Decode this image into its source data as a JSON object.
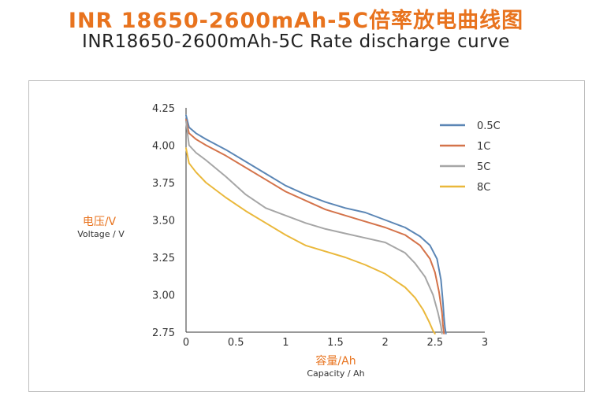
{
  "header": {
    "title_cn": "INR 18650-2600mAh-5C倍率放电曲线图",
    "title_en": "INR18650-2600mAh-5C Rate discharge curve"
  },
  "colors": {
    "accent": "#e8731e",
    "axis": "#333333",
    "frame": "#bdbdbd"
  },
  "chart_data": {
    "type": "line",
    "title": "INR18650-2600mAh-5C Rate discharge curve",
    "xlabel": "容量/Ah",
    "xlabel_en": "Capacity / Ah",
    "ylabel": "电压/V",
    "ylabel_en": "Voltage / V",
    "xlim": [
      0,
      3
    ],
    "ylim": [
      2.75,
      4.25
    ],
    "x_ticks": [
      0,
      0.5,
      1,
      1.5,
      2,
      2.5,
      3
    ],
    "x_tick_labels": [
      "0",
      "0.5",
      "1",
      "1.5",
      "2",
      "2.5",
      "3"
    ],
    "y_ticks": [
      2.75,
      3.0,
      3.25,
      3.5,
      3.75,
      4.0,
      4.25
    ],
    "y_tick_labels": [
      "2.75",
      "3.00",
      "3.25",
      "3.50",
      "3.75",
      "4.00",
      "4.25"
    ],
    "grid": false,
    "legend_position": "top-right",
    "series": [
      {
        "name": "0.5C",
        "color": "#5b86b5",
        "x": [
          0,
          0.03,
          0.1,
          0.2,
          0.4,
          0.6,
          0.8,
          1.0,
          1.2,
          1.4,
          1.6,
          1.8,
          2.0,
          2.2,
          2.35,
          2.45,
          2.52,
          2.56,
          2.58,
          2.59,
          2.6,
          2.61
        ],
        "y": [
          4.2,
          4.12,
          4.08,
          4.04,
          3.97,
          3.89,
          3.81,
          3.73,
          3.67,
          3.62,
          3.58,
          3.55,
          3.5,
          3.45,
          3.39,
          3.33,
          3.24,
          3.1,
          2.95,
          2.85,
          2.78,
          2.74
        ]
      },
      {
        "name": "1C",
        "color": "#d4734a",
        "x": [
          0,
          0.03,
          0.1,
          0.2,
          0.4,
          0.6,
          0.8,
          1.0,
          1.2,
          1.4,
          1.6,
          1.8,
          2.0,
          2.2,
          2.35,
          2.45,
          2.5,
          2.54,
          2.57,
          2.58,
          2.59
        ],
        "y": [
          4.17,
          4.08,
          4.04,
          4.0,
          3.93,
          3.85,
          3.77,
          3.69,
          3.63,
          3.57,
          3.53,
          3.49,
          3.45,
          3.4,
          3.33,
          3.24,
          3.15,
          3.02,
          2.88,
          2.8,
          2.74
        ]
      },
      {
        "name": "5C",
        "color": "#a6a6a6",
        "x": [
          0,
          0.03,
          0.1,
          0.2,
          0.4,
          0.6,
          0.8,
          1.0,
          1.2,
          1.4,
          1.6,
          1.8,
          2.0,
          2.2,
          2.3,
          2.4,
          2.48,
          2.53,
          2.56,
          2.57
        ],
        "y": [
          4.16,
          4.0,
          3.95,
          3.9,
          3.79,
          3.67,
          3.58,
          3.53,
          3.48,
          3.44,
          3.41,
          3.38,
          3.35,
          3.28,
          3.21,
          3.12,
          3.0,
          2.88,
          2.79,
          2.74
        ]
      },
      {
        "name": "8C",
        "color": "#eab83b",
        "x": [
          0,
          0.03,
          0.1,
          0.2,
          0.4,
          0.6,
          0.8,
          1.0,
          1.2,
          1.4,
          1.6,
          1.8,
          2.0,
          2.2,
          2.3,
          2.38,
          2.44,
          2.48,
          2.5
        ],
        "y": [
          3.98,
          3.88,
          3.82,
          3.75,
          3.65,
          3.56,
          3.48,
          3.4,
          3.33,
          3.29,
          3.25,
          3.2,
          3.14,
          3.05,
          2.98,
          2.9,
          2.82,
          2.76,
          2.74
        ]
      }
    ]
  }
}
